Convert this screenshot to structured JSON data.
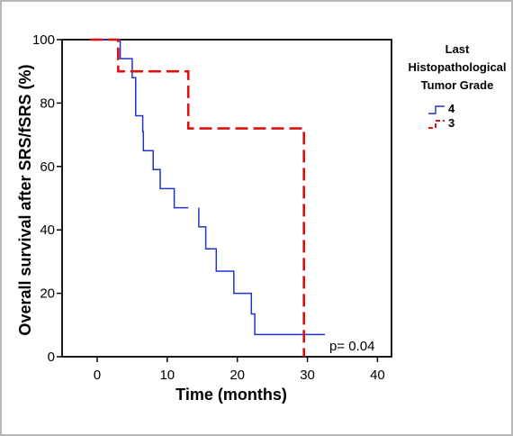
{
  "chart_data": {
    "type": "line",
    "subtype": "kaplan-meier",
    "xlabel": "Time (months)",
    "ylabel": "Overall survival after SRS/fSRS (%)",
    "xlim": [
      -5,
      42
    ],
    "ylim": [
      0,
      100
    ],
    "xticks": [
      0,
      10,
      20,
      30,
      40
    ],
    "yticks": [
      0,
      20,
      40,
      60,
      80,
      100
    ],
    "legend": {
      "title_lines": [
        "Last",
        "Histopathological",
        "Tumor Grade"
      ],
      "placement": "right"
    },
    "annotation": "p= 0.04",
    "series": [
      {
        "name": "4",
        "color": "#2233cc",
        "dash": "solid",
        "points": [
          [
            -1,
            100
          ],
          [
            3.3,
            100
          ],
          [
            3.3,
            94
          ],
          [
            5,
            94
          ],
          [
            5,
            88
          ],
          [
            5.5,
            88
          ],
          [
            5.5,
            76
          ],
          [
            6.5,
            76
          ],
          [
            6.5,
            71
          ],
          [
            6.6,
            71
          ],
          [
            6.6,
            65
          ],
          [
            8,
            65
          ],
          [
            8,
            59
          ],
          [
            9,
            59
          ],
          [
            9,
            53
          ],
          [
            11,
            53
          ],
          [
            11,
            47
          ],
          [
            13,
            47
          ]
        ],
        "points2": [
          [
            14.5,
            47
          ],
          [
            14.5,
            41
          ],
          [
            15.5,
            41
          ],
          [
            15.5,
            34
          ],
          [
            17,
            34
          ],
          [
            17,
            27
          ],
          [
            19.5,
            27
          ],
          [
            19.5,
            20
          ],
          [
            22,
            20
          ],
          [
            22,
            13.5
          ],
          [
            22.5,
            13.5
          ],
          [
            22.5,
            7
          ],
          [
            32.5,
            7
          ]
        ]
      },
      {
        "name": "3",
        "color": "#dd1111",
        "dash": "dashed",
        "points": [
          [
            -1,
            100
          ],
          [
            3,
            100
          ],
          [
            3,
            90
          ],
          [
            13,
            90
          ],
          [
            13,
            72
          ],
          [
            29.5,
            72
          ],
          [
            29.5,
            0
          ]
        ]
      }
    ]
  }
}
